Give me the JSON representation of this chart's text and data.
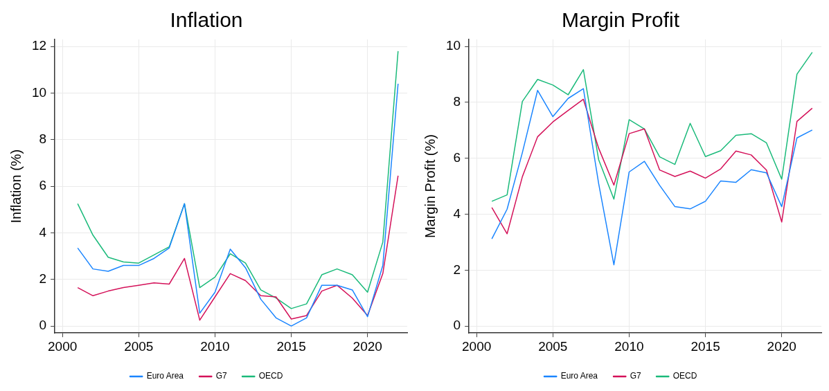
{
  "chart_data": [
    {
      "type": "line",
      "title": "Inflation",
      "ylabel": "Inflation (%)",
      "x": [
        2001,
        2002,
        2003,
        2004,
        2005,
        2006,
        2007,
        2008,
        2009,
        2010,
        2011,
        2012,
        2013,
        2014,
        2015,
        2016,
        2017,
        2018,
        2019,
        2020,
        2021,
        2022
      ],
      "series": [
        {
          "name": "Euro Area",
          "color": "#1a85ff",
          "values": [
            3.35,
            2.45,
            2.35,
            2.6,
            2.6,
            2.9,
            3.35,
            5.25,
            0.55,
            1.45,
            3.3,
            2.5,
            1.15,
            0.35,
            0,
            0.35,
            1.75,
            1.75,
            1.55,
            0.4,
            2.6,
            10.4
          ]
        },
        {
          "name": "G7",
          "color": "#d41159",
          "values": [
            1.65,
            1.3,
            1.5,
            1.65,
            1.75,
            1.85,
            1.8,
            2.9,
            0.25,
            1.25,
            2.25,
            1.95,
            1.3,
            1.25,
            0.3,
            0.45,
            1.5,
            1.75,
            1.2,
            0.45,
            2.25,
            6.45
          ]
        },
        {
          "name": "OECD",
          "color": "#1aba7a",
          "values": [
            5.25,
            3.9,
            2.95,
            2.75,
            2.7,
            3.05,
            3.4,
            5.25,
            1.65,
            2.1,
            3.1,
            2.7,
            1.55,
            1.2,
            0.75,
            0.95,
            2.2,
            2.45,
            2.2,
            1.45,
            3.6,
            11.8
          ]
        }
      ],
      "xlim": [
        1999.5,
        2022.6
      ],
      "xticks": [
        2000,
        2005,
        2010,
        2015,
        2020
      ],
      "ylim": [
        -0.3,
        12.3
      ],
      "yticks": [
        0,
        2,
        4,
        6,
        8,
        10,
        12
      ],
      "grid": true,
      "legend": "bottom",
      "marker": "none",
      "line_style": "solid"
    },
    {
      "type": "line",
      "title": "Margin Profit",
      "ylabel": "Margin Profit (%)",
      "x": [
        2001,
        2002,
        2003,
        2004,
        2005,
        2006,
        2007,
        2008,
        2009,
        2010,
        2011,
        2012,
        2013,
        2014,
        2015,
        2016,
        2017,
        2018,
        2019,
        2020,
        2021,
        2022
      ],
      "series": [
        {
          "name": "Euro Area",
          "color": "#1a85ff",
          "values": [
            3.12,
            4.18,
            6.2,
            8.43,
            7.49,
            8.14,
            8.49,
            5.1,
            2.19,
            5.51,
            5.89,
            5.03,
            4.27,
            4.19,
            4.46,
            5.19,
            5.14,
            5.59,
            5.48,
            4.27,
            6.73,
            7.01
          ]
        },
        {
          "name": "G7",
          "color": "#d41159",
          "values": [
            4.24,
            3.3,
            5.34,
            6.77,
            7.3,
            7.71,
            8.11,
            6.36,
            5.04,
            6.88,
            7.05,
            5.58,
            5.35,
            5.54,
            5.29,
            5.62,
            6.26,
            6.12,
            5.58,
            3.72,
            7.32,
            7.79
          ]
        },
        {
          "name": "OECD",
          "color": "#1aba7a",
          "values": [
            4.46,
            4.69,
            8.03,
            8.82,
            8.62,
            8.27,
            9.17,
            5.95,
            4.54,
            7.38,
            7.05,
            6.05,
            5.78,
            7.25,
            6.06,
            6.27,
            6.82,
            6.88,
            6.55,
            5.25,
            9.01,
            9.79
          ]
        }
      ],
      "xlim": [
        1999.5,
        2022.6
      ],
      "xticks": [
        2000,
        2005,
        2010,
        2015,
        2020
      ],
      "ylim": [
        -0.25,
        10.25
      ],
      "yticks": [
        0,
        2,
        4,
        6,
        8,
        10
      ],
      "grid": true,
      "legend": "bottom",
      "marker": "none",
      "line_style": "solid"
    }
  ]
}
